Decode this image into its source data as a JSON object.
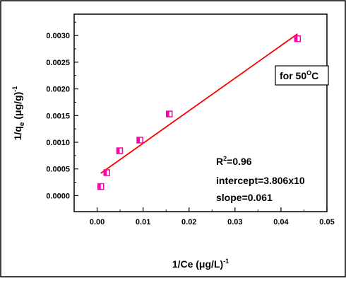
{
  "chart_data": {
    "type": "scatter",
    "xlabel": "1/Ce (μg/L)",
    "xlabel_sup": "-1",
    "ylabel": "1/q",
    "ylabel_sub": "e",
    "ylabel_rest": " (μg/g)",
    "ylabel_sup": "-1",
    "xlim": [
      -0.005,
      0.05
    ],
    "ylim": [
      -0.0003,
      0.0034
    ],
    "xticks": [
      "0.00",
      "0.01",
      "0.02",
      "0.03",
      "0.04",
      "0.05"
    ],
    "yticks": [
      "0.0000",
      "0.0005",
      "0.0010",
      "0.0015",
      "0.0020",
      "0.0025",
      "0.0030"
    ],
    "series": [
      {
        "points": [
          {
            "x": 0.0008,
            "y": 0.00017
          },
          {
            "x": 0.0021,
            "y": 0.00043
          },
          {
            "x": 0.0049,
            "y": 0.00084
          },
          {
            "x": 0.0093,
            "y": 0.00104
          },
          {
            "x": 0.0157,
            "y": 0.00153
          },
          {
            "x": 0.0436,
            "y": 0.00294
          }
        ],
        "color": "#ff00aa"
      }
    ],
    "fit_line": {
      "x": [
        0.0008,
        0.0436
      ],
      "y": [
        0.00042,
        0.00303
      ],
      "color": "#ff0000"
    },
    "legend_box": {
      "text": "for 50",
      "sup": "O",
      "suffix": "C"
    },
    "annotations": {
      "r2_prefix": "R",
      "r2_sup": "2",
      "r2_value": "=0.96",
      "intercept": "intercept=3.806x10",
      "slope": "slope=0.061"
    }
  }
}
